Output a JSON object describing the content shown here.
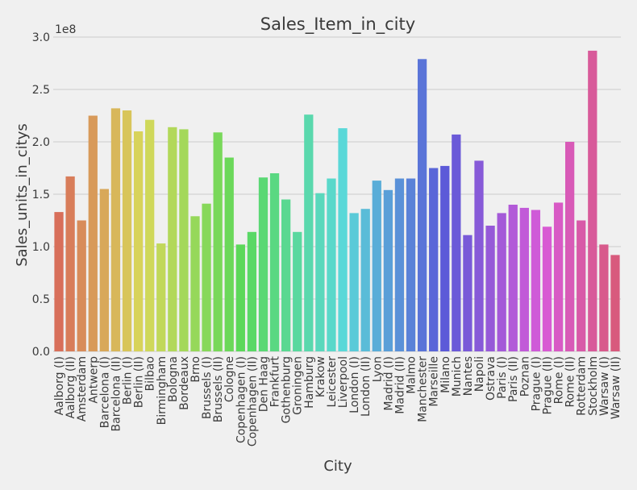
{
  "chart_data": {
    "type": "bar",
    "title": "Sales_Item_in_city",
    "xlabel": "City",
    "ylabel": "Sales_units_in_citys",
    "y_offset_label": "1e8",
    "ylim": [
      0,
      3.0
    ],
    "y_ticks": [
      "0.0",
      "0.5",
      "1.0",
      "1.5",
      "2.0",
      "2.5",
      "3.0"
    ],
    "y_tick_values": [
      0,
      0.5,
      1.0,
      1.5,
      2.0,
      2.5,
      3.0
    ],
    "grid": true,
    "categories": [
      "Aalborg (I)",
      "Aalborg (II)",
      "Amsterdam",
      "Antwerp",
      "Barcelona (I)",
      "Barcelona (II)",
      "Berlin (I)",
      "Berlin (II)",
      "Bilbao",
      "Birmingham",
      "Bologna",
      "Bordeaux",
      "Brno",
      "Brussels (I)",
      "Brussels (II)",
      "Cologne",
      "Copenhagen (I)",
      "Copenhagen (II)",
      "Den Haag",
      "Frankfurt",
      "Gothenburg",
      "Groningen",
      "Hamburg",
      "Krakow",
      "Leicester",
      "Liverpool",
      "London (I)",
      "London (II)",
      "Lyon",
      "Madrid (I)",
      "Madrid (II)",
      "Malmo",
      "Manchester",
      "Marseille",
      "Milano",
      "Munich",
      "Nantes",
      "Napoli",
      "Ostrava",
      "Paris (I)",
      "Paris (II)",
      "Poznan",
      "Prague (I)",
      "Prague (II)",
      "Rome (I)",
      "Rome (II)",
      "Rotterdam",
      "Stockholm",
      "Warsaw (I)",
      "Warsaw (II)"
    ],
    "values": [
      1.33,
      1.67,
      1.25,
      2.25,
      1.55,
      2.32,
      2.3,
      2.1,
      2.21,
      1.03,
      2.14,
      2.12,
      1.29,
      1.41,
      2.09,
      1.85,
      1.02,
      1.14,
      1.66,
      1.7,
      1.45,
      1.14,
      2.26,
      1.51,
      1.65,
      2.13,
      1.32,
      1.36,
      1.63,
      1.54,
      1.65,
      1.65,
      2.79,
      1.75,
      1.77,
      2.07,
      1.11,
      1.82,
      1.2,
      1.32,
      1.4,
      1.37,
      1.35,
      1.19,
      1.42,
      2.0,
      1.25,
      2.87,
      1.02,
      0.92
    ],
    "colors": {
      "background": "#f0f0f0",
      "grid": "#cbcbcb",
      "text": "#3a3a3a"
    }
  }
}
